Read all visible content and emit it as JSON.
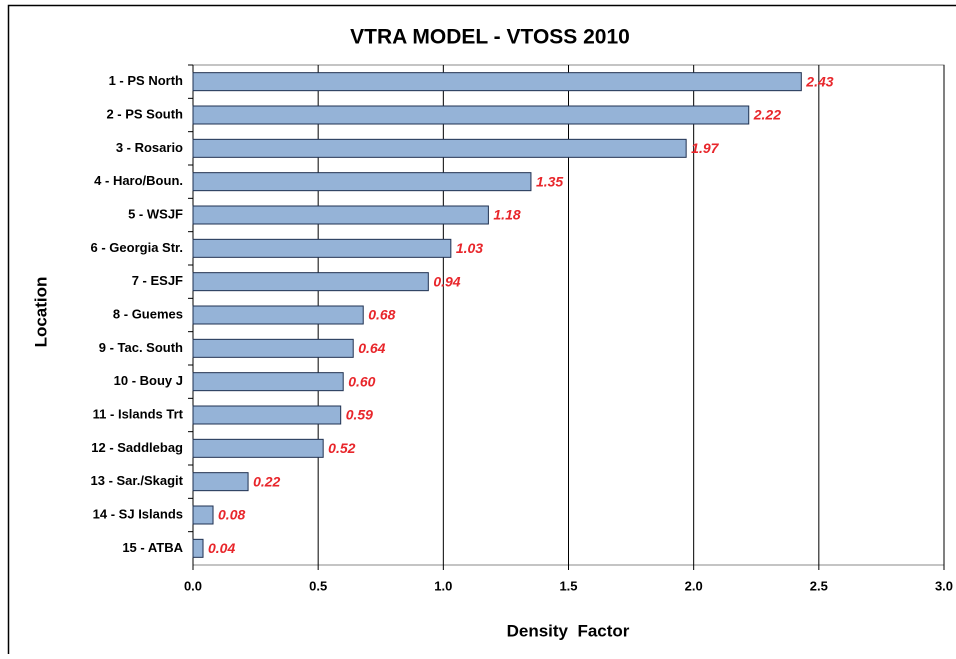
{
  "chart_data": {
    "type": "bar",
    "orientation": "horizontal",
    "title": "VTRA MODEL - VTOSS 2010",
    "x_label": "Density  Factor",
    "y_label": "Location",
    "categories": [
      "1 - PS North",
      "2 - PS South",
      "3 - Rosario",
      "4 - Haro/Boun.",
      "5 - WSJF",
      "6 - Georgia Str.",
      "7 - ESJF",
      "8 - Guemes",
      "9 - Tac. South",
      "10 - Bouy J",
      "11 - Islands Trt",
      "12 - Saddlebag",
      "13 - Sar./Skagit",
      "14 - SJ Islands",
      "15 - ATBA"
    ],
    "values": [
      2.43,
      2.22,
      1.97,
      1.35,
      1.18,
      1.03,
      0.94,
      0.68,
      0.64,
      0.6,
      0.59,
      0.52,
      0.22,
      0.08,
      0.04
    ],
    "value_labels": [
      "2.43",
      "2.22",
      "1.97",
      "1.35",
      "1.18",
      "1.03",
      "0.94",
      "0.68",
      "0.64",
      "0.60",
      "0.59",
      "0.52",
      "0.22",
      "0.08",
      "0.04"
    ],
    "color": "#95b3d7",
    "label_color": "#e8262b",
    "xlim": [
      0,
      3
    ],
    "xticks": [
      {
        "value": 0,
        "label": "0.0"
      },
      {
        "value": 0.5,
        "label": "0.5"
      },
      {
        "value": 1,
        "label": "1.0"
      },
      {
        "value": 1.5,
        "label": "1.5"
      },
      {
        "value": 2,
        "label": "2.0"
      },
      {
        "value": 2.5,
        "label": "2.5"
      },
      {
        "value": 3,
        "label": "3.0"
      }
    ],
    "grid": true
  }
}
